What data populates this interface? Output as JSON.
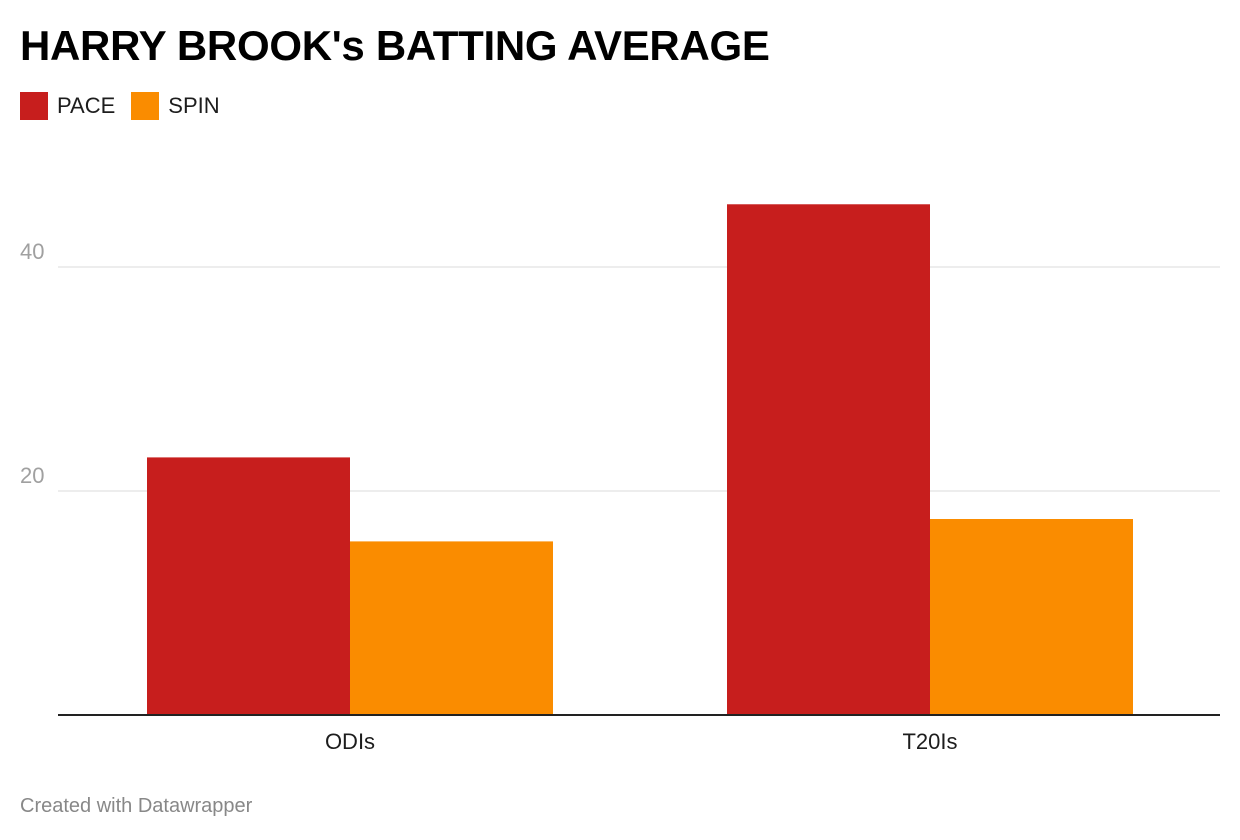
{
  "chart_data": {
    "type": "bar",
    "title": "HARRY BROOK's BATTING AVERAGE",
    "categories": [
      "ODIs",
      "T20Is"
    ],
    "series": [
      {
        "name": "PACE",
        "color": "#c71e1d",
        "values": [
          23.0,
          45.6
        ]
      },
      {
        "name": "SPIN",
        "color": "#fa8c00",
        "values": [
          15.5,
          17.5
        ]
      }
    ],
    "xlabel": "",
    "ylabel": "",
    "ylim": [
      0,
      50
    ],
    "yticks": [
      20,
      40
    ],
    "grid": true,
    "legend": "top-left"
  },
  "footer": {
    "credit": "Created with Datawrapper"
  }
}
